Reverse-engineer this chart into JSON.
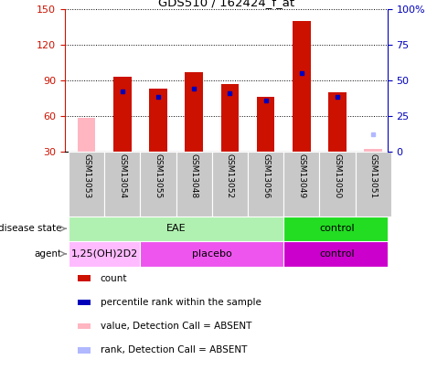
{
  "title": "GDS510 / 162424_f_at",
  "samples": [
    "GSM13053",
    "GSM13054",
    "GSM13055",
    "GSM13048",
    "GSM13052",
    "GSM13056",
    "GSM13049",
    "GSM13050",
    "GSM13051"
  ],
  "count_values": [
    null,
    93,
    83,
    97,
    87,
    76,
    140,
    80,
    null
  ],
  "count_absent_values": [
    58,
    null,
    null,
    null,
    null,
    null,
    null,
    null,
    32
  ],
  "rank_values_pct": [
    null,
    42,
    38,
    44,
    41,
    36,
    55,
    38,
    null
  ],
  "rank_absent_pct": [
    null,
    null,
    null,
    null,
    null,
    null,
    null,
    null,
    12
  ],
  "ylim_left": [
    30,
    150
  ],
  "ylim_right": [
    0,
    100
  ],
  "yticks_left": [
    30,
    60,
    90,
    120,
    150
  ],
  "yticks_right": [
    0,
    25,
    50,
    75,
    100
  ],
  "bar_width": 0.5,
  "color_count": "#cc1100",
  "color_rank": "#0000bb",
  "color_absent_count": "#ffb6c1",
  "color_absent_rank": "#b0b8ff",
  "disease_state_groups": [
    {
      "label": "EAE",
      "start": 0,
      "end": 6,
      "color": "#b0f0b0"
    },
    {
      "label": "control",
      "start": 6,
      "end": 9,
      "color": "#22dd22"
    }
  ],
  "agent_groups": [
    {
      "label": "1,25(OH)2D2",
      "start": 0,
      "end": 2,
      "color": "#ffbbff"
    },
    {
      "label": "placebo",
      "start": 2,
      "end": 6,
      "color": "#ee55ee"
    },
    {
      "label": "control",
      "start": 6,
      "end": 9,
      "color": "#cc00cc"
    }
  ],
  "legend_items": [
    {
      "label": "count",
      "color": "#cc1100"
    },
    {
      "label": "percentile rank within the sample",
      "color": "#0000bb"
    },
    {
      "label": "value, Detection Call = ABSENT",
      "color": "#ffb6c1"
    },
    {
      "label": "rank, Detection Call = ABSENT",
      "color": "#b0b8ff"
    }
  ],
  "left_axis_color": "#cc1100",
  "right_axis_color": "#0000bb",
  "row_label_ds": "disease state",
  "row_label_ag": "agent",
  "xlim": [
    -0.6,
    8.4
  ]
}
